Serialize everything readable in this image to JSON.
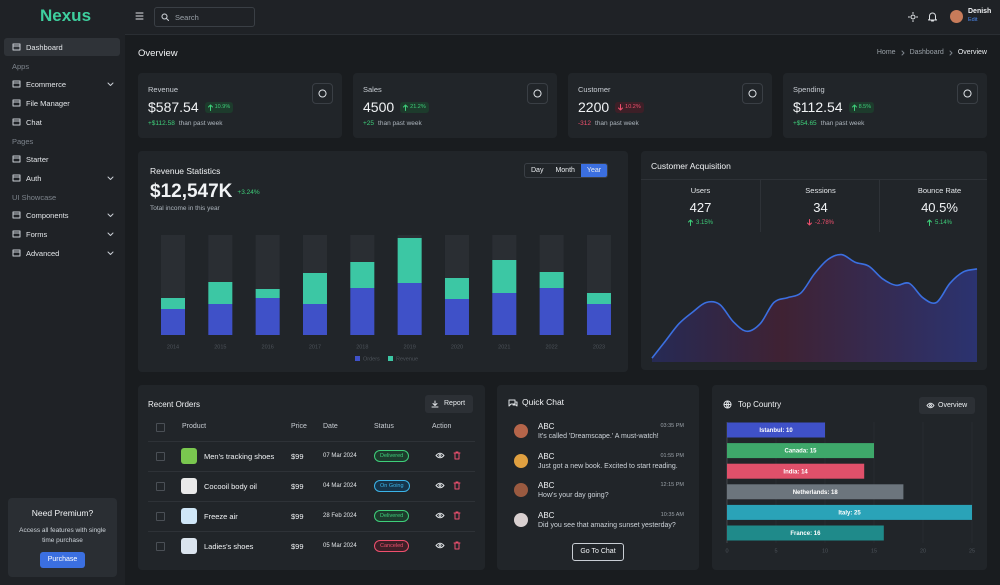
{
  "brand": "Nexus",
  "sidebar": [
    {
      "label": "Dashboard",
      "active": true
    },
    {
      "section": "Apps"
    },
    {
      "label": "Ecommerce",
      "has_submenu": true
    },
    {
      "label": "File Manager"
    },
    {
      "label": "Chat"
    },
    {
      "section": "Pages"
    },
    {
      "label": "Starter"
    },
    {
      "label": "Auth",
      "has_submenu": true
    },
    {
      "section": "UI Showcase"
    },
    {
      "label": "Components",
      "has_submenu": true
    },
    {
      "label": "Forms",
      "has_submenu": true
    },
    {
      "label": "Advanced",
      "has_submenu": true
    }
  ],
  "premium": {
    "title": "Need Premium?",
    "text": "Access all features with single time purchase",
    "button": "Purchase"
  },
  "header": {
    "search_placeholder": "Search",
    "user": {
      "name": "Denish",
      "action": "Edit"
    }
  },
  "page": {
    "title": "Overview",
    "breadcrumb": [
      "Home",
      "Dashboard",
      "Overview"
    ]
  },
  "stats": [
    {
      "title": "Revenue",
      "value": "$587.54",
      "change": "10.9%",
      "direction": "up",
      "delta": "+$112.58",
      "note": "than past week"
    },
    {
      "title": "Sales",
      "value": "4500",
      "change": "21.2%",
      "direction": "up",
      "delta": "+25",
      "note": "than past week"
    },
    {
      "title": "Customer",
      "value": "2200",
      "change": "10.2%",
      "direction": "down",
      "delta": "-312",
      "note": "than past week"
    },
    {
      "title": "Spending",
      "value": "$112.54",
      "change": "8.5%",
      "direction": "up",
      "delta": "+$54.65",
      "note": "than past week"
    }
  ],
  "revenue_statistics": {
    "title": "Revenue Statistics",
    "tabs": [
      "Day",
      "Month",
      "Year"
    ],
    "active_tab": 2,
    "total": "$12,547K",
    "change": "+3.24%",
    "note": "Total income in this year",
    "chart": {
      "type": "bar",
      "stacked": true,
      "categories": [
        "2014",
        "2015",
        "2016",
        "2017",
        "2018",
        "2019",
        "2020",
        "2021",
        "2022",
        "2023"
      ],
      "series": [
        {
          "name": "Orders",
          "color": "#3f51c8",
          "values": [
            26,
            31,
            37,
            31,
            47,
            52,
            36,
            42,
            47,
            31
          ]
        },
        {
          "name": "Revenue",
          "color": "#3cc7a4",
          "values": [
            11,
            22,
            9,
            31,
            26,
            45,
            21,
            33,
            16,
            11
          ]
        }
      ],
      "ylim": [
        0,
        100
      ]
    }
  },
  "customer_acquisition": {
    "title": "Customer Acquisition",
    "metrics": [
      {
        "label": "Users",
        "value": "427",
        "change": "3.15%",
        "direction": "up"
      },
      {
        "label": "Sessions",
        "value": "34",
        "change": "-2.78%",
        "direction": "down"
      },
      {
        "label": "Bounce Rate",
        "value": "40.5%",
        "change": "5.14%",
        "direction": "up"
      }
    ],
    "chart": {
      "type": "area",
      "color": "#3b6fe0",
      "values": [
        2,
        20,
        38,
        50,
        60,
        58,
        40,
        30,
        38,
        60,
        65,
        70,
        90,
        105,
        110,
        102,
        98,
        85,
        78,
        80,
        65,
        60,
        80,
        92,
        95
      ],
      "ylim": [
        0,
        120
      ]
    }
  },
  "recent_orders": {
    "title": "Recent Orders",
    "action": "Report",
    "columns": [
      "Product",
      "Price",
      "Date",
      "Status",
      "Action"
    ],
    "rows": [
      {
        "product": "Men's tracking shoes",
        "price": "$99",
        "date": "07 Mar 2024",
        "status": "Delivered",
        "tone": "success"
      },
      {
        "product": "Cocooil body oil",
        "price": "$99",
        "date": "04 Mar 2024",
        "status": "On Going",
        "tone": "info"
      },
      {
        "product": "Freeze air",
        "price": "$99",
        "date": "28 Feb 2024",
        "status": "Delivered",
        "tone": "success"
      },
      {
        "product": "Ladies's shoes",
        "price": "$99",
        "date": "05 Mar 2024",
        "status": "Canceled",
        "tone": "danger"
      }
    ]
  },
  "quick_chat": {
    "title": "Quick Chat",
    "messages": [
      {
        "name": "ABC",
        "time": "03:35 PM",
        "text": "It's called 'Dreamscape.' A must-watch!"
      },
      {
        "name": "ABC",
        "time": "01:55 PM",
        "text": "Just got a new book. Excited to start reading."
      },
      {
        "name": "ABC",
        "time": "12:15 PM",
        "text": "How's your day going?"
      },
      {
        "name": "ABC",
        "time": "10:35 AM",
        "text": "Did you see that amazing sunset yesterday?"
      }
    ],
    "button": "Go To Chat"
  },
  "top_country": {
    "title": "Top Country",
    "action": "Overview",
    "chart": {
      "type": "bar",
      "orientation": "horizontal",
      "values": [
        10,
        15,
        14,
        18,
        25,
        16
      ],
      "value_labels": [
        "Istanbul: 10",
        "Canada: 15",
        "India: 14",
        "Netherlands: 18",
        "Italy: 25",
        "France: 16"
      ],
      "colors": [
        "#3f51c8",
        "#3ea86a",
        "#e0506a",
        "#6c757d",
        "#2aa3b8",
        "#1f8a8a"
      ],
      "xlim": [
        0,
        25
      ],
      "xticks": [
        0,
        5,
        10,
        15,
        20,
        25
      ],
      "grid": true
    }
  }
}
